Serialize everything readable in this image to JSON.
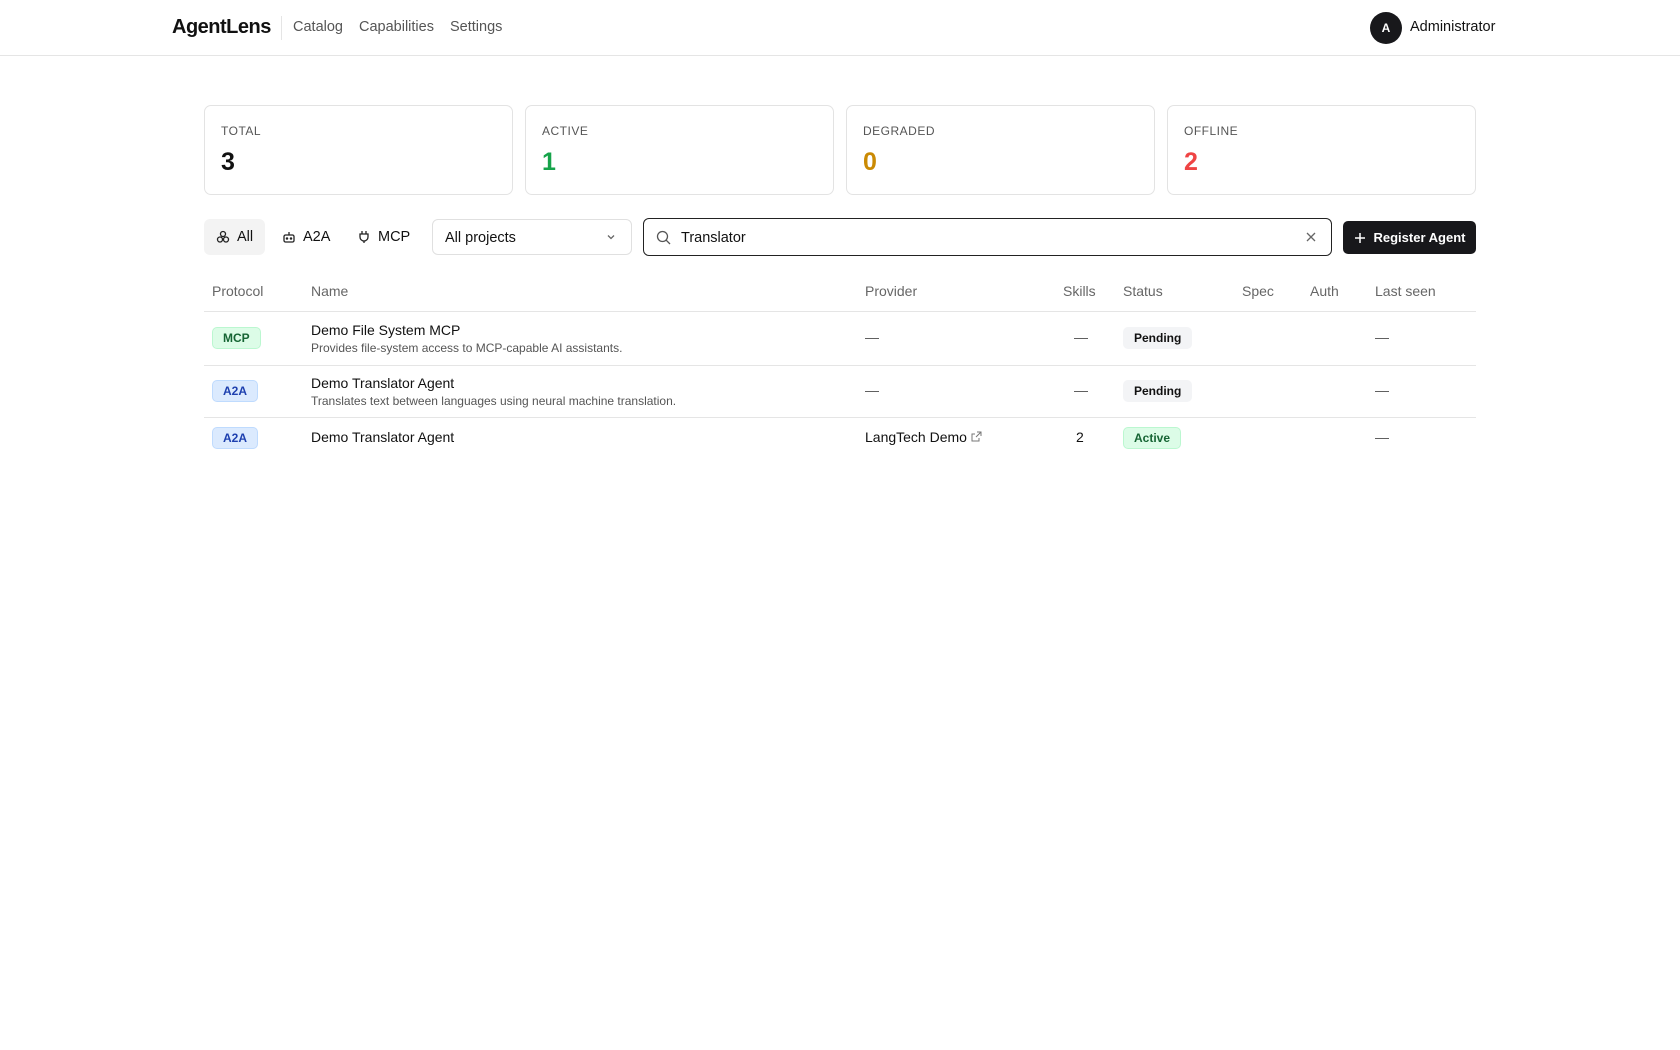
{
  "header": {
    "logo": "AgentLens",
    "nav": [
      "Catalog",
      "Capabilities",
      "Settings"
    ],
    "avatar_initial": "A",
    "user": "Administrator"
  },
  "stats": [
    {
      "label": "TOTAL",
      "value": "3",
      "color": "#111111"
    },
    {
      "label": "ACTIVE",
      "value": "1",
      "color": "#16a34a"
    },
    {
      "label": "DEGRADED",
      "value": "0",
      "color": "#ca8a04"
    },
    {
      "label": "OFFLINE",
      "value": "2",
      "color": "#ef4444"
    }
  ],
  "toolbar": {
    "filters": [
      {
        "label": "All",
        "icon": "network-icon",
        "selected": true
      },
      {
        "label": "A2A",
        "icon": "bot-icon",
        "selected": false
      },
      {
        "label": "MCP",
        "icon": "plug-icon",
        "selected": false
      }
    ],
    "project_select": "All projects",
    "search_value": "Translator",
    "register_label": "Register Agent"
  },
  "table": {
    "columns": [
      "Protocol",
      "Name",
      "Provider",
      "Skills",
      "Status",
      "Spec",
      "Auth",
      "Last seen"
    ],
    "rows": [
      {
        "protocol": "MCP",
        "name": "Demo File System MCP",
        "description": "Provides file-system access to MCP-capable AI assistants.",
        "provider": "—",
        "skills": "—",
        "status": "Pending",
        "spec": "",
        "auth": "",
        "last_seen": "—"
      },
      {
        "protocol": "A2A",
        "name": "Demo Translator Agent",
        "description": "Translates text between languages using neural machine translation.",
        "provider": "—",
        "skills": "—",
        "status": "Pending",
        "spec": "",
        "auth": "",
        "last_seen": "—"
      },
      {
        "protocol": "A2A",
        "name": "Demo Translator Agent",
        "description": "",
        "provider": "LangTech Demo",
        "skills": "2",
        "status": "Active",
        "spec": "",
        "auth": "",
        "last_seen": "—"
      }
    ]
  }
}
